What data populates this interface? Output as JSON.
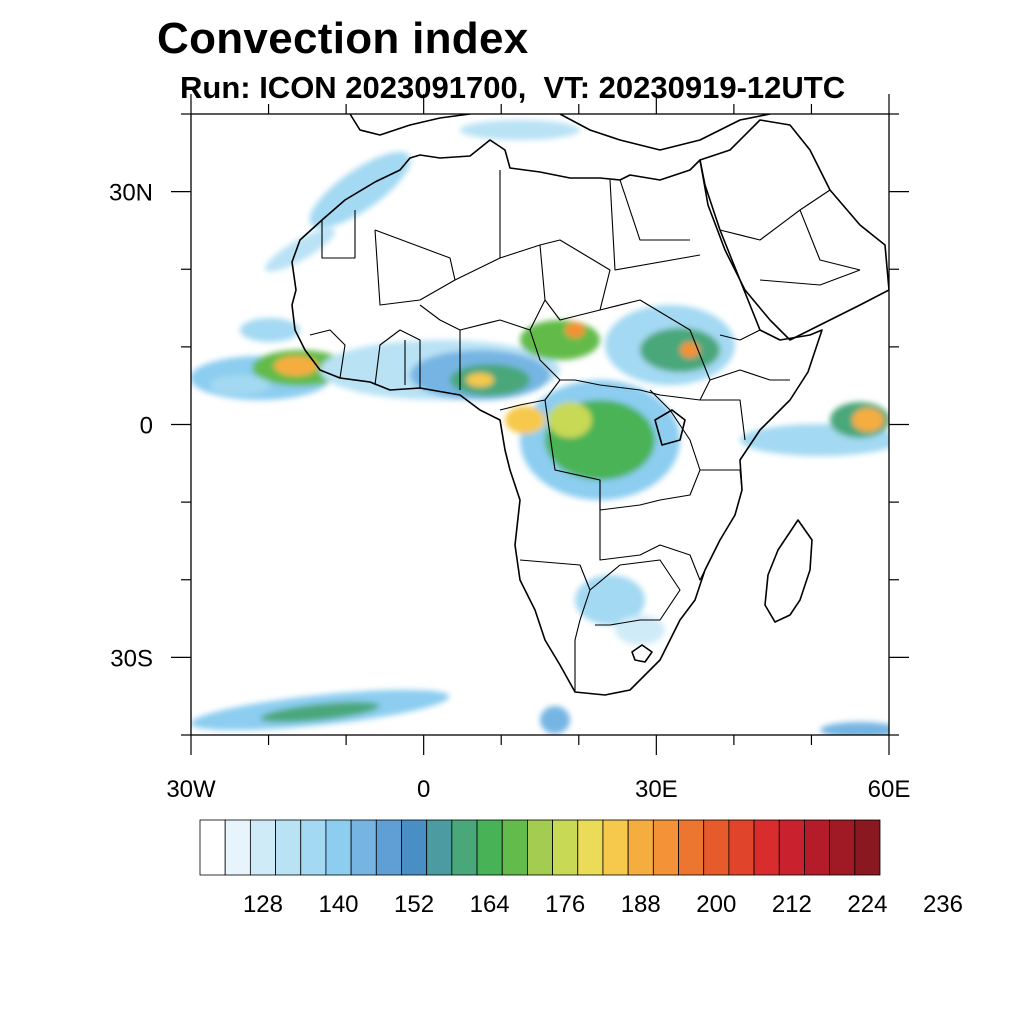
{
  "title": "Convection index",
  "subtitle": "Run: ICON 2023091700,  VT: 20230919-12UTC",
  "map": {
    "lon_range": [
      -30,
      60
    ],
    "lat_range": [
      -40,
      40
    ],
    "lat_ticks": [
      {
        "value": 30,
        "label": "30N"
      },
      {
        "value": 0,
        "label": "0"
      },
      {
        "value": -30,
        "label": "30S"
      }
    ],
    "lon_ticks": [
      {
        "value": -30,
        "label": "30W"
      },
      {
        "value": 0,
        "label": "0"
      },
      {
        "value": 30,
        "label": "30E"
      },
      {
        "value": 60,
        "label": "60E"
      }
    ]
  },
  "colorbar": {
    "labels": [
      "128",
      "140",
      "152",
      "164",
      "176",
      "188",
      "200",
      "212",
      "224",
      "236"
    ],
    "colors": [
      "#ffffff",
      "#e8f4fb",
      "#d0ebf8",
      "#b9e2f5",
      "#a3d9f2",
      "#8ccdf0",
      "#76b5e3",
      "#5f9fd6",
      "#4a8ec6",
      "#4b9ba0",
      "#4aa77a",
      "#48b356",
      "#62bb4a",
      "#a3cc50",
      "#c8d956",
      "#eadb58",
      "#f6c94c",
      "#f6ad3f",
      "#f39236",
      "#ec7630",
      "#e65a2b",
      "#e0442a",
      "#d82d2c",
      "#c9212d",
      "#b41c2a",
      "#a01a25",
      "#8a1820"
    ]
  }
}
